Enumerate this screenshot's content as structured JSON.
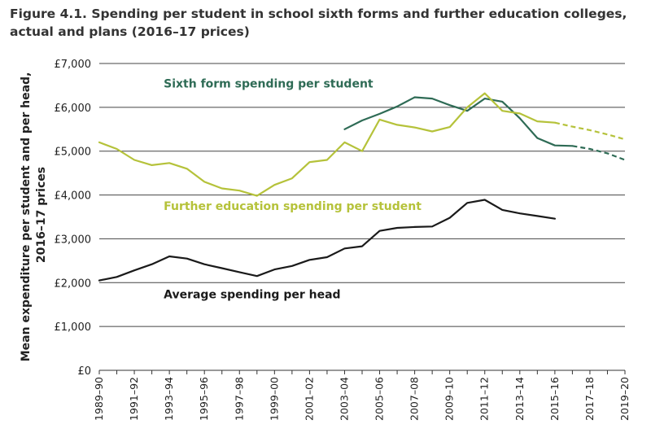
{
  "figure": {
    "title": "Figure 4.1. Spending per student in school sixth forms and further education colleges, actual and plans (2016–17 prices)"
  },
  "chart_data": {
    "type": "line",
    "title": "Figure 4.1. Spending per student in school sixth forms and further education colleges, actual and plans (2016–17 prices)",
    "xlabel": "",
    "ylabel": "Mean expenditure per student and per head, 2016–17 prices",
    "ylim": [
      0,
      7000
    ],
    "y_ticks": [
      0,
      1000,
      2000,
      3000,
      4000,
      5000,
      6000,
      7000
    ],
    "y_tick_labels": [
      "£0",
      "£1,000",
      "£2,000",
      "£3,000",
      "£4,000",
      "£5,000",
      "£6,000",
      "£7,000"
    ],
    "grid": "horizontal",
    "categories": [
      "1989–90",
      "1990–91",
      "1991–92",
      "1992–93",
      "1993–94",
      "1994–95",
      "1995–96",
      "1996–97",
      "1997–98",
      "1998–99",
      "1999–00",
      "2000–01",
      "2001–02",
      "2002–03",
      "2003–04",
      "2004–05",
      "2005–06",
      "2006–07",
      "2007–08",
      "2008–09",
      "2009–10",
      "2010–11",
      "2011–12",
      "2012–13",
      "2013–14",
      "2014–15",
      "2015–16",
      "2016–17",
      "2017–18",
      "2018–19",
      "2019–20"
    ],
    "x_tick_labels": [
      "1989–90",
      "1991–92",
      "1993–94",
      "1995–96",
      "1997–98",
      "1999–00",
      "2001–02",
      "2003–04",
      "2005–06",
      "2007–08",
      "2009–10",
      "2011–12",
      "2013–14",
      "2015–16",
      "2017–18",
      "2019–20"
    ],
    "series": [
      {
        "name": "Sixth form spending per student",
        "color": "#2e6b55",
        "values": [
          null,
          null,
          null,
          null,
          null,
          null,
          null,
          null,
          null,
          null,
          null,
          null,
          null,
          null,
          5500,
          5700,
          5850,
          6020,
          6230,
          6200,
          6050,
          5920,
          6200,
          6130,
          5750,
          5300,
          5130,
          5120,
          null,
          null,
          null
        ],
        "plan_values": [
          null,
          null,
          null,
          null,
          null,
          null,
          null,
          null,
          null,
          null,
          null,
          null,
          null,
          null,
          null,
          null,
          null,
          null,
          null,
          null,
          null,
          null,
          null,
          null,
          null,
          null,
          null,
          5120,
          5050,
          4950,
          4800
        ]
      },
      {
        "name": "Further education spending per student",
        "color": "#b5c23a",
        "values": [
          5200,
          5050,
          4800,
          4680,
          4730,
          4600,
          4300,
          4150,
          4100,
          3980,
          4230,
          4380,
          4750,
          4800,
          5200,
          5000,
          5720,
          5600,
          5540,
          5450,
          5550,
          6000,
          6320,
          5920,
          5860,
          5680,
          5650,
          null,
          null,
          null,
          null
        ],
        "plan_values": [
          null,
          null,
          null,
          null,
          null,
          null,
          null,
          null,
          null,
          null,
          null,
          null,
          null,
          null,
          null,
          null,
          null,
          null,
          null,
          null,
          null,
          null,
          null,
          null,
          null,
          null,
          5650,
          5560,
          5480,
          5380,
          5270
        ]
      },
      {
        "name": "Average spending per head",
        "color": "#1a1a1a",
        "values": [
          2050,
          2130,
          2280,
          2420,
          2600,
          2550,
          2420,
          2330,
          2240,
          2150,
          2300,
          2380,
          2520,
          2580,
          2780,
          2830,
          3180,
          3250,
          3270,
          3280,
          3480,
          3820,
          3890,
          3660,
          3580,
          3520,
          3460,
          null,
          null,
          null,
          null
        ]
      }
    ],
    "annotations": [
      {
        "text": "Sixth form spending per student",
        "color": "#2e6b55"
      },
      {
        "text": "Further education spending per student",
        "color": "#b5c23a"
      },
      {
        "text": "Average spending per head",
        "color": "#1a1a1a"
      }
    ]
  }
}
